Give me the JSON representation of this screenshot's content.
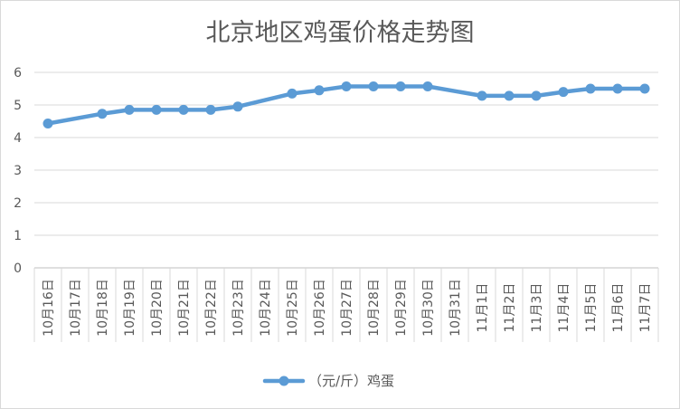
{
  "chart_data": {
    "type": "line",
    "title": "北京地区鸡蛋价格走势图",
    "categories": [
      "10月16日",
      "10月17日",
      "10月18日",
      "10月19日",
      "10月20日",
      "10月21日",
      "10月22日",
      "10月23日",
      "10月24日",
      "10月25日",
      "10月26日",
      "10月27日",
      "10月28日",
      "10月29日",
      "10月30日",
      "10月31日",
      "11月1日",
      "11月2日",
      "11月3日",
      "11月4日",
      "11月5日",
      "11月6日",
      "11月7日"
    ],
    "series": [
      {
        "name": "（元/斤）鸡蛋",
        "color": "#5b9bd5",
        "values": [
          4.43,
          null,
          4.73,
          4.85,
          4.85,
          4.85,
          4.85,
          4.95,
          null,
          5.35,
          5.45,
          5.57,
          5.57,
          5.57,
          5.57,
          null,
          5.28,
          5.28,
          5.28,
          5.4,
          5.5,
          5.5,
          5.5
        ]
      }
    ],
    "xlabel": "",
    "ylabel": "",
    "ylim": [
      0,
      6
    ],
    "y_ticks": [
      0,
      1,
      2,
      3,
      4,
      5,
      6
    ],
    "grid": true,
    "legend": "bottom"
  }
}
